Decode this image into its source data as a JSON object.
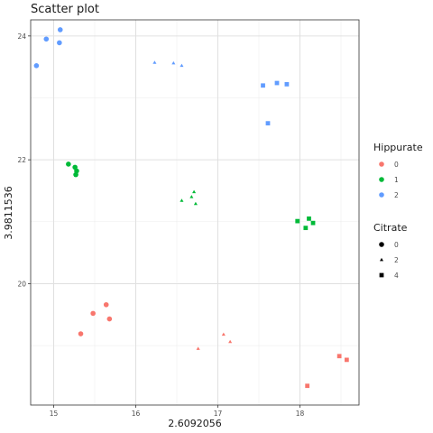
{
  "chart_data": {
    "type": "scatter",
    "title": "Scatter plot",
    "xlabel": "2.6092056",
    "ylabel": "3.9811536",
    "xlim": [
      14.72,
      18.72
    ],
    "ylim": [
      18.04,
      24.26
    ],
    "x_ticks": [
      15,
      16,
      17,
      18
    ],
    "y_ticks": [
      20,
      22,
      24
    ],
    "grid": true,
    "legend_position": "right",
    "color_legend": {
      "title": "Hippurate",
      "entries": [
        {
          "label": "0",
          "color": "#F8766D"
        },
        {
          "label": "1",
          "color": "#00BA38"
        },
        {
          "label": "2",
          "color": "#619CFF"
        }
      ]
    },
    "shape_legend": {
      "title": "Citrate",
      "entries": [
        {
          "label": "0",
          "shape": "circle"
        },
        {
          "label": "2",
          "shape": "triangle"
        },
        {
          "label": "4",
          "shape": "square"
        }
      ]
    },
    "points": [
      {
        "x": 14.91,
        "y": 23.95,
        "hippurate": "2",
        "citrate": "0"
      },
      {
        "x": 15.08,
        "y": 24.1,
        "hippurate": "2",
        "citrate": "0"
      },
      {
        "x": 15.07,
        "y": 23.89,
        "hippurate": "2",
        "citrate": "0"
      },
      {
        "x": 14.79,
        "y": 23.52,
        "hippurate": "2",
        "citrate": "0"
      },
      {
        "x": 16.23,
        "y": 23.57,
        "hippurate": "2",
        "citrate": "2"
      },
      {
        "x": 16.46,
        "y": 23.56,
        "hippurate": "2",
        "citrate": "2"
      },
      {
        "x": 16.56,
        "y": 23.52,
        "hippurate": "2",
        "citrate": "2"
      },
      {
        "x": 17.55,
        "y": 23.2,
        "hippurate": "2",
        "citrate": "4"
      },
      {
        "x": 17.72,
        "y": 23.24,
        "hippurate": "2",
        "citrate": "4"
      },
      {
        "x": 17.84,
        "y": 23.22,
        "hippurate": "2",
        "citrate": "4"
      },
      {
        "x": 17.61,
        "y": 22.59,
        "hippurate": "2",
        "citrate": "4"
      },
      {
        "x": 15.18,
        "y": 21.93,
        "hippurate": "1",
        "citrate": "0"
      },
      {
        "x": 15.26,
        "y": 21.88,
        "hippurate": "1",
        "citrate": "0"
      },
      {
        "x": 15.28,
        "y": 21.82,
        "hippurate": "1",
        "citrate": "0"
      },
      {
        "x": 15.27,
        "y": 21.76,
        "hippurate": "1",
        "citrate": "0"
      },
      {
        "x": 16.56,
        "y": 21.34,
        "hippurate": "1",
        "citrate": "2"
      },
      {
        "x": 16.68,
        "y": 21.4,
        "hippurate": "1",
        "citrate": "2"
      },
      {
        "x": 16.71,
        "y": 21.48,
        "hippurate": "1",
        "citrate": "2"
      },
      {
        "x": 16.73,
        "y": 21.29,
        "hippurate": "1",
        "citrate": "2"
      },
      {
        "x": 17.97,
        "y": 21.01,
        "hippurate": "1",
        "citrate": "4"
      },
      {
        "x": 18.11,
        "y": 21.05,
        "hippurate": "1",
        "citrate": "4"
      },
      {
        "x": 18.16,
        "y": 20.98,
        "hippurate": "1",
        "citrate": "4"
      },
      {
        "x": 18.07,
        "y": 20.9,
        "hippurate": "1",
        "citrate": "4"
      },
      {
        "x": 15.64,
        "y": 19.66,
        "hippurate": "0",
        "citrate": "0"
      },
      {
        "x": 15.48,
        "y": 19.52,
        "hippurate": "0",
        "citrate": "0"
      },
      {
        "x": 15.68,
        "y": 19.43,
        "hippurate": "0",
        "citrate": "0"
      },
      {
        "x": 15.33,
        "y": 19.19,
        "hippurate": "0",
        "citrate": "0"
      },
      {
        "x": 17.07,
        "y": 19.18,
        "hippurate": "0",
        "citrate": "2"
      },
      {
        "x": 17.15,
        "y": 19.06,
        "hippurate": "0",
        "citrate": "2"
      },
      {
        "x": 16.76,
        "y": 18.95,
        "hippurate": "0",
        "citrate": "2"
      },
      {
        "x": 18.48,
        "y": 18.83,
        "hippurate": "0",
        "citrate": "4"
      },
      {
        "x": 18.57,
        "y": 18.77,
        "hippurate": "0",
        "citrate": "4"
      },
      {
        "x": 18.09,
        "y": 18.35,
        "hippurate": "0",
        "citrate": "4"
      }
    ]
  }
}
